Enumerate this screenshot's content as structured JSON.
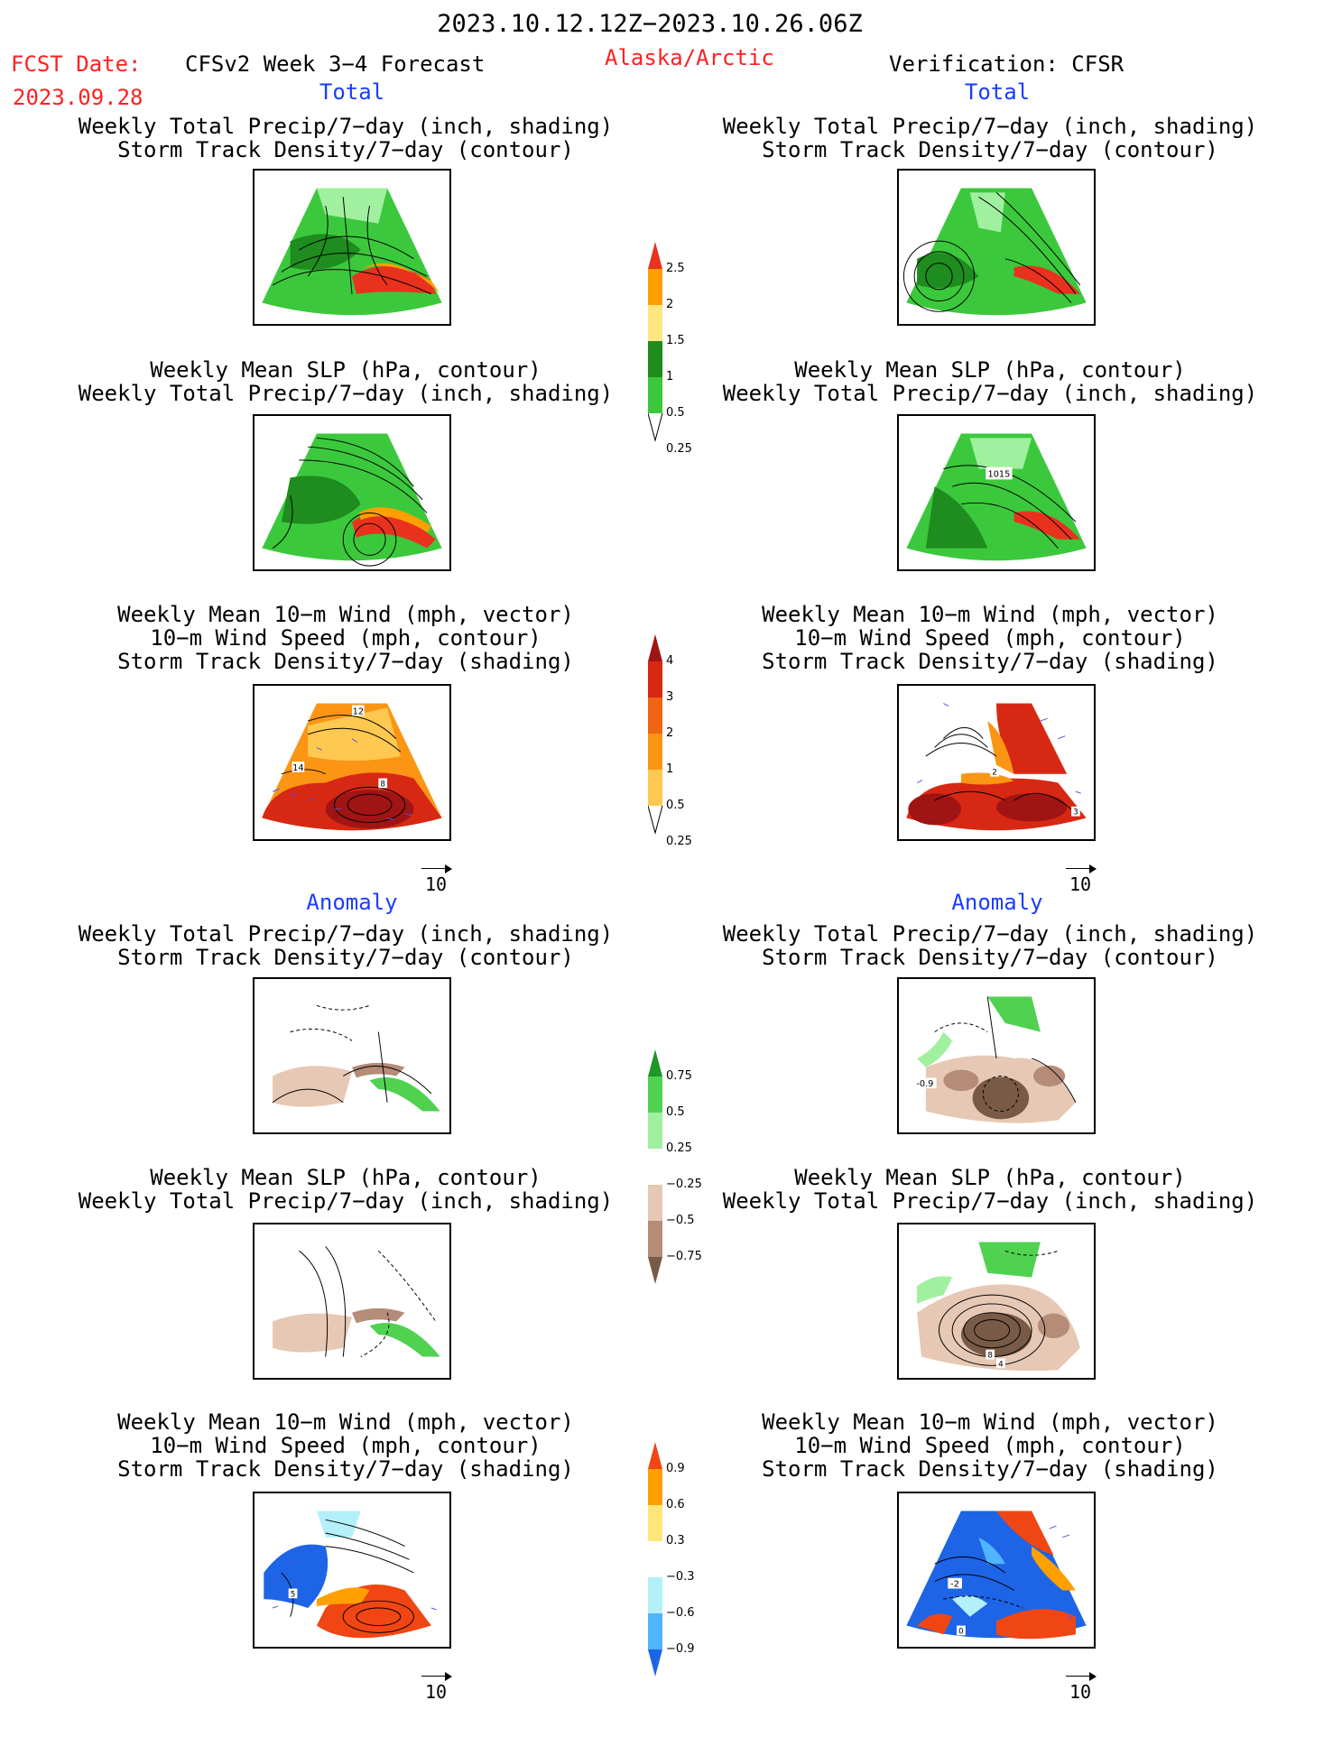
{
  "header": {
    "date_range": "2023.10.12.12Z−2023.10.26.06Z",
    "fcst_label": "FCST Date:",
    "fcst_date": "2023.09.28",
    "product": "CFSv2 Week 3−4 Forecast",
    "region": "Alaska/Arctic",
    "verification": "Verification: CFSR"
  },
  "sections": {
    "total_left": "Total",
    "total_right": "Total",
    "anomaly_left": "Anomaly",
    "anomaly_right": "Anomaly"
  },
  "titles": {
    "precip_storm": "Weekly Total Precip/7−day (inch, shading)\nStorm Track Density/7−day (contour)",
    "slp_precip": "Weekly Mean SLP (hPa, contour)\nWeekly Total Precip/7−day (inch, shading)",
    "wind_storm": "Weekly Mean 10−m Wind (mph, vector)\n10−m Wind Speed (mph, contour)\nStorm Track Density/7−day (shading)"
  },
  "vector_scale": "10",
  "map_labels": {
    "slp_total_right": "1015",
    "wind_total_left_a": "12",
    "wind_total_left_b": "14",
    "wind_total_left_c": "8",
    "wind_total_right_a": "2",
    "wind_total_right_b": "3",
    "precip_anom_right": "-0.9",
    "slp_anom_right_a": "8",
    "slp_anom_right_b": "4",
    "wind_anom_left": "5",
    "wind_anom_right_a": "-2",
    "wind_anom_right_b": "0"
  },
  "colorbars": {
    "precip_total": {
      "labels": [
        "2.5",
        "2",
        "1.5",
        "1",
        "0.5",
        "0.25"
      ],
      "colors": [
        "#e8321e",
        "#ffa000",
        "#ffe680",
        "#1e8c1e",
        "#3cc83c",
        "#a0f0a0"
      ]
    },
    "storm_total": {
      "labels": [
        "4",
        "3",
        "2",
        "1",
        "0.5",
        "0.25"
      ],
      "colors": [
        "#a01414",
        "#d72814",
        "#f06414",
        "#fa9614",
        "#ffc850",
        "#fff0a0"
      ]
    },
    "precip_anom": {
      "labels": [
        "0.75",
        "0.5",
        "0.25",
        "−0.25",
        "−0.5",
        "−0.75"
      ],
      "colors": [
        "#1e9628",
        "#50d250",
        "#a0f0a0",
        "#ffffff",
        "#e6c8b4",
        "#b48c78",
        "#785a46"
      ]
    },
    "storm_anom": {
      "labels": [
        "0.9",
        "0.6",
        "0.3",
        "−0.3",
        "−0.6",
        "−0.9"
      ],
      "colors": [
        "#f04614",
        "#ffa000",
        "#ffe678",
        "#ffffff",
        "#b4f0fa",
        "#50b4ff",
        "#1e64e6"
      ]
    }
  }
}
